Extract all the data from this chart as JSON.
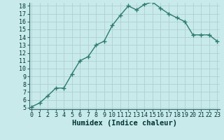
{
  "title": "",
  "xlabel": "Humidex (Indice chaleur)",
  "ylabel": "",
  "x": [
    0,
    1,
    2,
    3,
    4,
    5,
    6,
    7,
    8,
    9,
    10,
    11,
    12,
    13,
    14,
    15,
    16,
    17,
    18,
    19,
    20,
    21,
    22,
    23
  ],
  "y": [
    5.1,
    5.6,
    6.5,
    7.5,
    7.5,
    9.3,
    11.0,
    11.5,
    13.0,
    13.5,
    15.5,
    16.8,
    18.0,
    17.5,
    18.2,
    18.5,
    17.7,
    17.0,
    16.5,
    16.0,
    14.3,
    14.3,
    14.3,
    13.5
  ],
  "line_color": "#2d7a6e",
  "marker": "+",
  "marker_size": 4,
  "marker_lw": 1.0,
  "line_width": 1.0,
  "bg_color": "#c8eaea",
  "grid_color": "#b0d0d0",
  "ylim_min": 5,
  "ylim_max": 18,
  "xlim_min": 0,
  "xlim_max": 23,
  "yticks": [
    5,
    6,
    7,
    8,
    9,
    10,
    11,
    12,
    13,
    14,
    15,
    16,
    17,
    18
  ],
  "xticks": [
    0,
    1,
    2,
    3,
    4,
    5,
    6,
    7,
    8,
    9,
    10,
    11,
    12,
    13,
    14,
    15,
    16,
    17,
    18,
    19,
    20,
    21,
    22,
    23
  ],
  "tick_fontsize": 6,
  "xlabel_fontsize": 7.5,
  "axis_color": "#336666",
  "text_color": "#003333"
}
